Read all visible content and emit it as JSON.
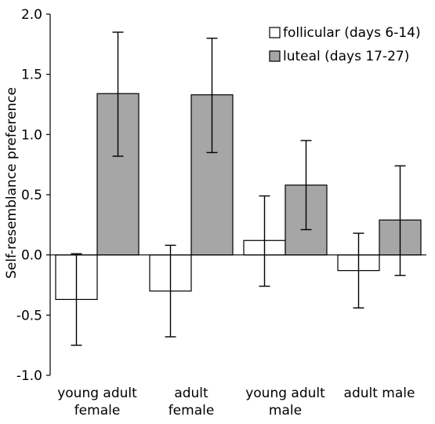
{
  "chart_data": {
    "type": "bar",
    "ylabel": "Self-resemblance preference",
    "xlabel": "",
    "ylim": [
      -1.0,
      2.0
    ],
    "yticks": [
      "2.0",
      "1.5",
      "1.0",
      "0.5",
      "0.0",
      "-0.5",
      "-1.0"
    ],
    "ytick_values": [
      2.0,
      1.5,
      1.0,
      0.5,
      0.0,
      -0.5,
      -1.0
    ],
    "categories": [
      [
        "young adult",
        "female"
      ],
      [
        "adult",
        "female"
      ],
      [
        "young adult",
        "male"
      ],
      [
        "adult male"
      ]
    ],
    "legend_position": "top-right",
    "series": [
      {
        "name": "follicular (days 6-14)",
        "color": "#ffffff",
        "values": [
          -0.37,
          -0.3,
          0.12,
          -0.13
        ],
        "err_low": [
          -0.75,
          -0.68,
          -0.26,
          -0.44
        ],
        "err_high": [
          0.01,
          0.08,
          0.49,
          0.18
        ]
      },
      {
        "name": "luteal (days 17-27)",
        "color": "#a6a6a6",
        "values": [
          1.34,
          1.33,
          0.58,
          0.29
        ],
        "err_low": [
          0.82,
          0.85,
          0.21,
          -0.17
        ],
        "err_high": [
          1.85,
          1.8,
          0.95,
          0.74
        ]
      }
    ]
  }
}
